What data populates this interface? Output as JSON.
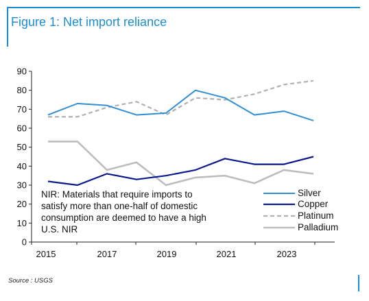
{
  "figure_title": "Figure 1: Net import reliance",
  "source": "Source : USGS",
  "colors": {
    "accent": "#1a8fd0",
    "silver": "#2e8fd4",
    "copper": "#0a1a8c",
    "platinum": "#b0b0b0",
    "palladium": "#bdbdbd"
  },
  "chart_data": {
    "type": "line",
    "x": [
      2015,
      2016,
      2017,
      2018,
      2019,
      2020,
      2021,
      2022,
      2023,
      2024
    ],
    "x_ticks": [
      2015,
      2017,
      2019,
      2021,
      2023
    ],
    "y_ticks": [
      0,
      10,
      20,
      30,
      40,
      50,
      60,
      70,
      80,
      90
    ],
    "ylim": [
      0,
      90
    ],
    "grid": false,
    "legend_position": "bottom-right",
    "note": [
      "NIR: Materials that require imports to",
      "satisfy more than one-half of domestic",
      "consumption are deemed to have a high",
      "U.S. NIR"
    ],
    "series": [
      {
        "name": "Silver",
        "style": "solid",
        "values": [
          67,
          73,
          72,
          67,
          68,
          80,
          76,
          67,
          69,
          64
        ]
      },
      {
        "name": "Copper",
        "style": "solid",
        "values": [
          32,
          30,
          36,
          33,
          35,
          38,
          44,
          41,
          41,
          45
        ]
      },
      {
        "name": "Platinum",
        "style": "dashed",
        "values": [
          66,
          66,
          71,
          74,
          67,
          76,
          75,
          78,
          83,
          85
        ]
      },
      {
        "name": "Palladium",
        "style": "solid",
        "values": [
          53,
          53,
          38,
          42,
          30,
          34,
          35,
          31,
          38,
          36
        ]
      }
    ]
  }
}
